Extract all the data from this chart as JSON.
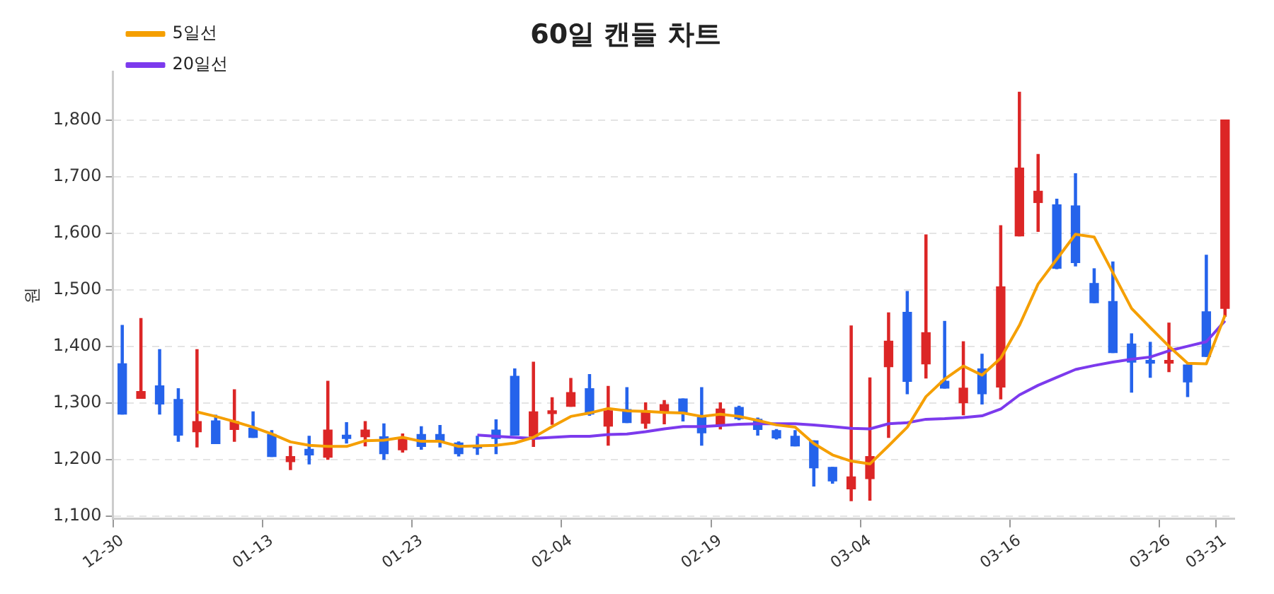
{
  "chart_data": {
    "type": "candlestick",
    "title": "60일 캔들 차트",
    "ylabel": "원",
    "categories": [
      "12-30",
      null,
      null,
      null,
      null,
      null,
      null,
      null,
      "01-13",
      null,
      null,
      null,
      null,
      null,
      null,
      null,
      "01-23",
      null,
      null,
      null,
      null,
      null,
      null,
      null,
      "02-04",
      null,
      null,
      null,
      null,
      null,
      null,
      null,
      "02-19",
      null,
      null,
      null,
      null,
      null,
      null,
      null,
      "03-04",
      null,
      null,
      null,
      null,
      null,
      null,
      null,
      "03-16",
      null,
      null,
      null,
      null,
      null,
      null,
      null,
      "03-26",
      null,
      null,
      "03-31"
    ],
    "ohlc": [
      [
        1369,
        1437,
        1280,
        1280
      ],
      [
        1308,
        1449,
        1308,
        1320
      ],
      [
        1330,
        1394,
        1280,
        1298
      ],
      [
        1306,
        1325,
        1232,
        1243
      ],
      [
        1249,
        1394,
        1222,
        1267
      ],
      [
        1268,
        1278,
        1228,
        1228
      ],
      [
        1253,
        1323,
        1232,
        1267
      ],
      [
        1255,
        1284,
        1239,
        1239
      ],
      [
        1244,
        1251,
        1205,
        1205
      ],
      [
        1196,
        1223,
        1182,
        1205
      ],
      [
        1218,
        1241,
        1192,
        1208
      ],
      [
        1204,
        1338,
        1200,
        1252
      ],
      [
        1243,
        1265,
        1229,
        1237
      ],
      [
        1240,
        1267,
        1224,
        1252
      ],
      [
        1240,
        1263,
        1200,
        1210
      ],
      [
        1217,
        1245,
        1213,
        1235
      ],
      [
        1244,
        1258,
        1218,
        1223
      ],
      [
        1244,
        1260,
        1222,
        1231
      ],
      [
        1229,
        1231,
        1206,
        1210
      ],
      [
        1225,
        1241,
        1209,
        1220
      ],
      [
        1252,
        1270,
        1210,
        1237
      ],
      [
        1347,
        1360,
        1243,
        1243
      ],
      [
        1241,
        1372,
        1223,
        1284
      ],
      [
        1281,
        1309,
        1262,
        1286
      ],
      [
        1294,
        1343,
        1294,
        1318
      ],
      [
        1325,
        1350,
        1278,
        1280
      ],
      [
        1259,
        1329,
        1225,
        1286
      ],
      [
        1288,
        1327,
        1265,
        1265
      ],
      [
        1264,
        1300,
        1255,
        1286
      ],
      [
        1285,
        1304,
        1263,
        1297
      ],
      [
        1307,
        1307,
        1268,
        1284
      ],
      [
        1274,
        1327,
        1225,
        1247
      ],
      [
        1260,
        1300,
        1254,
        1289
      ],
      [
        1292,
        1294,
        1270,
        1272
      ],
      [
        1271,
        1273,
        1243,
        1253
      ],
      [
        1251,
        1253,
        1236,
        1238
      ],
      [
        1241,
        1251,
        1224,
        1224
      ],
      [
        1233,
        1233,
        1153,
        1185
      ],
      [
        1186,
        1186,
        1158,
        1162
      ],
      [
        1148,
        1436,
        1127,
        1169
      ],
      [
        1166,
        1344,
        1128,
        1205
      ],
      [
        1364,
        1459,
        1239,
        1409
      ],
      [
        1460,
        1497,
        1316,
        1338
      ],
      [
        1369,
        1597,
        1344,
        1424
      ],
      [
        1338,
        1444,
        1326,
        1326
      ],
      [
        1300,
        1408,
        1279,
        1326
      ],
      [
        1360,
        1386,
        1298,
        1316
      ],
      [
        1328,
        1613,
        1307,
        1505
      ],
      [
        1595,
        1849,
        1595,
        1715
      ],
      [
        1654,
        1739,
        1603,
        1674
      ],
      [
        1650,
        1660,
        1537,
        1538
      ],
      [
        1648,
        1705,
        1542,
        1548
      ],
      [
        1511,
        1537,
        1477,
        1477
      ],
      [
        1479,
        1549,
        1389,
        1389
      ],
      [
        1404,
        1422,
        1319,
        1372
      ],
      [
        1374,
        1407,
        1345,
        1370
      ],
      [
        1370,
        1441,
        1355,
        1374
      ],
      [
        1367,
        1367,
        1311,
        1337
      ],
      [
        1461,
        1561,
        1382,
        1382
      ],
      [
        1467,
        1800,
        1453,
        1800
      ]
    ],
    "colors": [
      "#2563eb",
      "#dc2626",
      "#2563eb",
      "#2563eb",
      "#dc2626",
      "#2563eb",
      "#dc2626",
      "#2563eb",
      "#2563eb",
      "#dc2626",
      "#2563eb",
      "#dc2626",
      "#2563eb",
      "#dc2626",
      "#2563eb",
      "#dc2626",
      "#2563eb",
      "#2563eb",
      "#2563eb",
      "#2563eb",
      "#2563eb",
      "#2563eb",
      "#dc2626",
      "#dc2626",
      "#dc2626",
      "#2563eb",
      "#dc2626",
      "#2563eb",
      "#dc2626",
      "#dc2626",
      "#2563eb",
      "#2563eb",
      "#dc2626",
      "#2563eb",
      "#2563eb",
      "#2563eb",
      "#2563eb",
      "#2563eb",
      "#2563eb",
      "#dc2626",
      "#dc2626",
      "#dc2626",
      "#2563eb",
      "#dc2626",
      "#2563eb",
      "#dc2626",
      "#2563eb",
      "#dc2626",
      "#dc2626",
      "#dc2626",
      "#2563eb",
      "#2563eb",
      "#2563eb",
      "#2563eb",
      "#2563eb",
      "#2563eb",
      "#dc2626",
      "#2563eb",
      "#2563eb",
      "#dc2626"
    ],
    "series": [
      {
        "name": "5일선",
        "type": "line",
        "color": "#f59f00",
        "values": [
          null,
          null,
          null,
          null,
          1284,
          1276,
          1267,
          1257,
          1245,
          1231,
          1225,
          1223,
          1223,
          1233,
          1234,
          1239,
          1232,
          1232,
          1223,
          1224,
          1225,
          1229,
          1239,
          1258,
          1276,
          1282,
          1290,
          1286,
          1285,
          1283,
          1282,
          1276,
          1280,
          1276,
          1269,
          1261,
          1257,
          1228,
          1208,
          1197,
          1192,
          1224,
          1257,
          1311,
          1342,
          1365,
          1349,
          1379,
          1437,
          1510,
          1554,
          1598,
          1593,
          1530,
          1467,
          1433,
          1400,
          1370,
          1369,
          1455
        ]
      },
      {
        "name": "20일선",
        "type": "line",
        "color": "#7c3aed",
        "values": [
          null,
          null,
          null,
          null,
          null,
          null,
          null,
          null,
          null,
          null,
          null,
          null,
          null,
          null,
          null,
          null,
          null,
          null,
          null,
          1243,
          1241,
          1239,
          1237,
          1239,
          1241,
          1241,
          1244,
          1245,
          1249,
          1254,
          1258,
          1258,
          1260,
          1262,
          1263,
          1263,
          1263,
          1261,
          1258,
          1255,
          1254,
          1263,
          1265,
          1271,
          1272,
          1274,
          1277,
          1289,
          1314,
          1331,
          1345,
          1359,
          1366,
          1372,
          1377,
          1381,
          1392,
          1400,
          1408,
          1445
        ]
      }
    ],
    "ylim": [
      1095,
      1885
    ],
    "yticks": [
      {
        "value": 1100,
        "label": "1,100"
      },
      {
        "value": 1200,
        "label": "1,200"
      },
      {
        "value": 1300,
        "label": "1,300"
      },
      {
        "value": 1400,
        "label": "1,400"
      },
      {
        "value": 1500,
        "label": "1,500"
      },
      {
        "value": 1600,
        "label": "1,600"
      },
      {
        "value": 1700,
        "label": "1,700"
      },
      {
        "value": 1800,
        "label": "1,800"
      }
    ],
    "grid": "y",
    "legend": "top left",
    "marker": "none"
  }
}
